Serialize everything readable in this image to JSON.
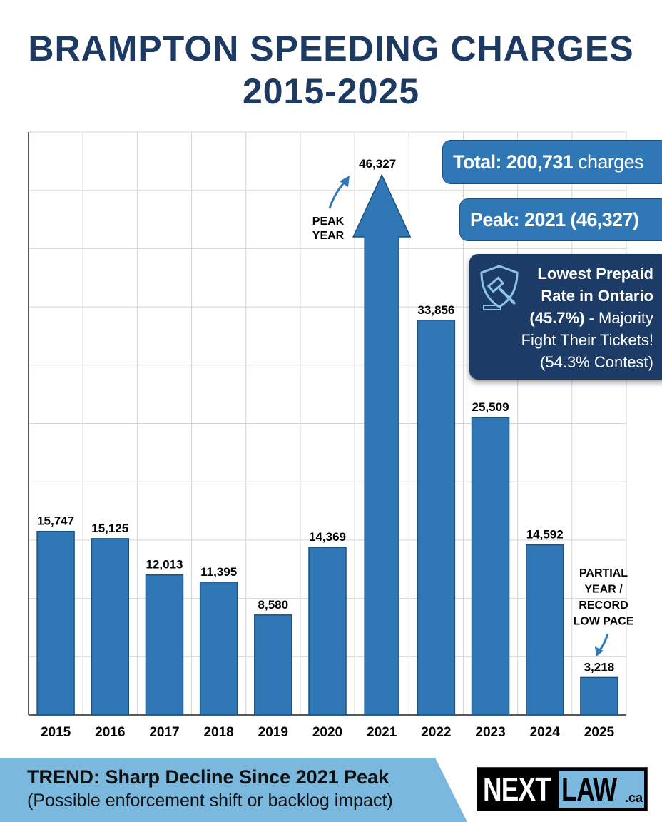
{
  "chart_data": {
    "type": "bar",
    "title": "BRAMPTON SPEEDING CHARGES 2015-2025",
    "categories": [
      "2015",
      "2016",
      "2017",
      "2018",
      "2019",
      "2020",
      "2021",
      "2022",
      "2023",
      "2024",
      "2025"
    ],
    "values": [
      15747,
      15125,
      12013,
      11395,
      8580,
      14369,
      46327,
      33856,
      25509,
      14592,
      3218
    ],
    "labels": [
      "15,747",
      "15,125",
      "12,013",
      "11,395",
      "8,580",
      "14,369",
      "46,327",
      "33,856",
      "25,509",
      "14,592",
      "3,218"
    ],
    "ylim": [
      0,
      50000
    ],
    "grid": true,
    "annotations": {
      "peak": "PEAK YEAR",
      "partial": [
        "PARTIAL",
        "YEAR /",
        "RECORD",
        "LOW PACE"
      ]
    }
  },
  "title_line1": "BRAMPTON SPEEDING CHARGES",
  "title_line2": "2015-2025",
  "peak_note": [
    "PEAK",
    "YEAR"
  ],
  "total_label": "Total: 200,731",
  "total_unit": "charges",
  "peak_box": "Peak: 2021 (46,327)",
  "prepaid": {
    "l1": "Lowest Prepaid",
    "l2": "Rate in Ontario",
    "l3a": "(45.7%)",
    "l3b": " - Majority",
    "l4": "Fight Their Tickets!",
    "l5": "(54.3% Contest)"
  },
  "trend": {
    "headline": "TREND: Sharp Decline Since 2021 Peak",
    "sub": "(Possible enforcement shift or backlog impact)"
  },
  "logo": {
    "a": "NEXT",
    "b": "LAW",
    ".ca": ".ca"
  },
  "colors": {
    "bar": "#2f78b5",
    "title": "#1d3a62",
    "dark": "#1c3b66"
  }
}
